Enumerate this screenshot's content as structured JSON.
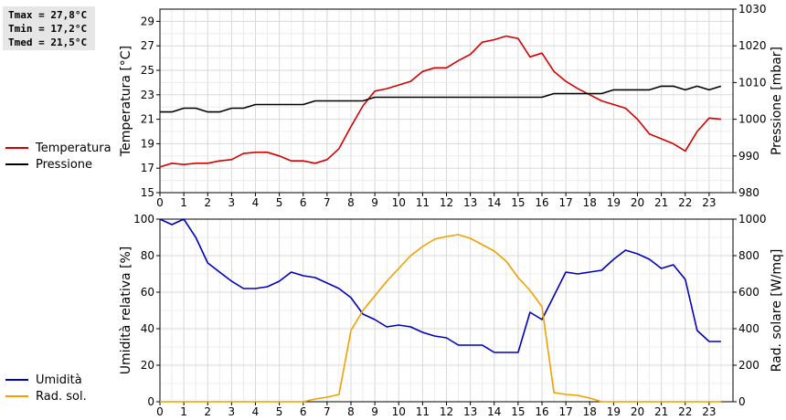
{
  "stats": {
    "tmax": "Tmax = 27,8°C",
    "tmin": "Tmin = 17,2°C",
    "tmed": "Tmed = 21,5°C"
  },
  "colors": {
    "temperature": "#d40000",
    "pressure": "#000000",
    "humidity": "#0000bb",
    "radiation": "#f0a000",
    "grid": "#d8d8d8",
    "axis": "#000000"
  },
  "chart_data": [
    {
      "type": "line",
      "xlabel": "",
      "x_ticks": [
        0,
        1,
        2,
        3,
        4,
        5,
        6,
        7,
        8,
        9,
        10,
        11,
        12,
        13,
        14,
        15,
        16,
        17,
        18,
        19,
        20,
        21,
        22,
        23
      ],
      "y_left": {
        "label": "Temperatura [°C]",
        "lim": [
          15,
          30
        ],
        "ticks": [
          15,
          17,
          19,
          21,
          23,
          25,
          27,
          29
        ]
      },
      "y_right": {
        "label": "Pressione [mbar]",
        "lim": [
          980,
          1030
        ],
        "ticks": [
          980,
          990,
          1000,
          1010,
          1020,
          1030
        ]
      },
      "legend": "left",
      "grid": true,
      "series": [
        {
          "name": "Temperatura",
          "axis": "left",
          "color_key": "temperature",
          "points": [
            [
              0,
              17.1
            ],
            [
              0.5,
              17.4
            ],
            [
              1,
              17.3
            ],
            [
              1.5,
              17.4
            ],
            [
              2,
              17.4
            ],
            [
              2.5,
              17.6
            ],
            [
              3,
              17.7
            ],
            [
              3.5,
              18.2
            ],
            [
              4,
              18.3
            ],
            [
              4.5,
              18.3
            ],
            [
              5,
              18.0
            ],
            [
              5.5,
              17.6
            ],
            [
              6,
              17.6
            ],
            [
              6.5,
              17.4
            ],
            [
              7,
              17.7
            ],
            [
              7.5,
              18.6
            ],
            [
              8,
              20.4
            ],
            [
              8.5,
              22.1
            ],
            [
              9,
              23.3
            ],
            [
              9.5,
              23.5
            ],
            [
              10,
              23.8
            ],
            [
              10.5,
              24.1
            ],
            [
              11,
              24.9
            ],
            [
              11.5,
              25.2
            ],
            [
              12,
              25.2
            ],
            [
              12.5,
              25.8
            ],
            [
              13,
              26.3
            ],
            [
              13.5,
              27.3
            ],
            [
              14,
              27.5
            ],
            [
              14.5,
              27.8
            ],
            [
              15,
              27.6
            ],
            [
              15.5,
              26.1
            ],
            [
              16,
              26.4
            ],
            [
              16.5,
              24.9
            ],
            [
              17,
              24.1
            ],
            [
              17.5,
              23.5
            ],
            [
              18,
              23.0
            ],
            [
              18.5,
              22.5
            ],
            [
              19,
              22.2
            ],
            [
              19.5,
              21.9
            ],
            [
              20,
              21.0
            ],
            [
              20.5,
              19.8
            ],
            [
              21,
              19.4
            ],
            [
              21.5,
              19.0
            ],
            [
              22,
              18.4
            ],
            [
              22.5,
              20.0
            ],
            [
              23,
              21.1
            ],
            [
              23.5,
              21.0
            ]
          ]
        },
        {
          "name": "Pressione",
          "axis": "right",
          "color_key": "pressure",
          "points": [
            [
              0,
              1002
            ],
            [
              0.5,
              1002
            ],
            [
              1,
              1003
            ],
            [
              1.5,
              1003
            ],
            [
              2,
              1002
            ],
            [
              2.5,
              1002
            ],
            [
              3,
              1003
            ],
            [
              3.5,
              1003
            ],
            [
              4,
              1004
            ],
            [
              4.5,
              1004
            ],
            [
              5,
              1004
            ],
            [
              5.5,
              1004
            ],
            [
              6,
              1004
            ],
            [
              6.5,
              1005
            ],
            [
              7,
              1005
            ],
            [
              7.5,
              1005
            ],
            [
              8,
              1005
            ],
            [
              8.5,
              1005
            ],
            [
              9,
              1006
            ],
            [
              9.5,
              1006
            ],
            [
              10,
              1006
            ],
            [
              10.5,
              1006
            ],
            [
              11,
              1006
            ],
            [
              11.5,
              1006
            ],
            [
              12,
              1006
            ],
            [
              12.5,
              1006
            ],
            [
              13,
              1006
            ],
            [
              13.5,
              1006
            ],
            [
              14,
              1006
            ],
            [
              14.5,
              1006
            ],
            [
              15,
              1006
            ],
            [
              15.5,
              1006
            ],
            [
              16,
              1006
            ],
            [
              16.5,
              1007
            ],
            [
              17,
              1007
            ],
            [
              17.5,
              1007
            ],
            [
              18,
              1007
            ],
            [
              18.5,
              1007
            ],
            [
              19,
              1008
            ],
            [
              19.5,
              1008
            ],
            [
              20,
              1008
            ],
            [
              20.5,
              1008
            ],
            [
              21,
              1009
            ],
            [
              21.5,
              1009
            ],
            [
              22,
              1008
            ],
            [
              22.5,
              1009
            ],
            [
              23,
              1008
            ],
            [
              23.5,
              1009
            ]
          ]
        }
      ]
    },
    {
      "type": "line",
      "xlabel": "",
      "x_ticks": [
        0,
        1,
        2,
        3,
        4,
        5,
        6,
        7,
        8,
        9,
        10,
        11,
        12,
        13,
        14,
        15,
        16,
        17,
        18,
        19,
        20,
        21,
        22,
        23
      ],
      "y_left": {
        "label": "Umidità relativa [%]",
        "lim": [
          0,
          100
        ],
        "ticks": [
          0,
          20,
          40,
          60,
          80,
          100
        ]
      },
      "y_right": {
        "label": "Rad. solare [W/mq]",
        "lim": [
          0,
          1000
        ],
        "ticks": [
          0,
          200,
          400,
          600,
          800,
          1000
        ]
      },
      "legend": "left",
      "grid": true,
      "series": [
        {
          "name": "Umidità",
          "axis": "left",
          "color_key": "humidity",
          "points": [
            [
              0,
              100
            ],
            [
              0.5,
              97
            ],
            [
              1,
              100
            ],
            [
              1.5,
              90
            ],
            [
              2,
              76
            ],
            [
              2.5,
              71
            ],
            [
              3,
              66
            ],
            [
              3.5,
              62
            ],
            [
              4,
              62
            ],
            [
              4.5,
              63
            ],
            [
              5,
              66
            ],
            [
              5.5,
              71
            ],
            [
              6,
              69
            ],
            [
              6.5,
              68
            ],
            [
              7,
              65
            ],
            [
              7.5,
              62
            ],
            [
              8,
              57
            ],
            [
              8.5,
              48
            ],
            [
              9,
              45
            ],
            [
              9.5,
              41
            ],
            [
              10,
              42
            ],
            [
              10.5,
              41
            ],
            [
              11,
              38
            ],
            [
              11.5,
              36
            ],
            [
              12,
              35
            ],
            [
              12.5,
              31
            ],
            [
              13,
              31
            ],
            [
              13.5,
              31
            ],
            [
              14,
              27
            ],
            [
              14.5,
              27
            ],
            [
              15,
              27
            ],
            [
              15.5,
              49
            ],
            [
              16,
              45
            ],
            [
              16.5,
              58
            ],
            [
              17,
              71
            ],
            [
              17.5,
              70
            ],
            [
              18,
              71
            ],
            [
              18.5,
              72
            ],
            [
              19,
              78
            ],
            [
              19.5,
              83
            ],
            [
              20,
              81
            ],
            [
              20.5,
              78
            ],
            [
              21,
              73
            ],
            [
              21.5,
              75
            ],
            [
              22,
              67
            ],
            [
              22.5,
              39
            ],
            [
              23,
              33
            ],
            [
              23.5,
              33
            ]
          ]
        },
        {
          "name": "Rad. sol.",
          "axis": "right",
          "color_key": "radiation",
          "points": [
            [
              0,
              0
            ],
            [
              6,
              0
            ],
            [
              6.5,
              15
            ],
            [
              7,
              25
            ],
            [
              7.5,
              40
            ],
            [
              8,
              390
            ],
            [
              8.5,
              500
            ],
            [
              9,
              580
            ],
            [
              9.5,
              660
            ],
            [
              10,
              730
            ],
            [
              10.5,
              800
            ],
            [
              11,
              850
            ],
            [
              11.5,
              890
            ],
            [
              12,
              905
            ],
            [
              12.5,
              915
            ],
            [
              13,
              895
            ],
            [
              13.5,
              860
            ],
            [
              14,
              825
            ],
            [
              14.5,
              770
            ],
            [
              15,
              680
            ],
            [
              15.5,
              610
            ],
            [
              16,
              520
            ],
            [
              16.5,
              50
            ],
            [
              17,
              40
            ],
            [
              17.5,
              35
            ],
            [
              18,
              20
            ],
            [
              18.5,
              0
            ],
            [
              23.5,
              0
            ]
          ]
        }
      ]
    }
  ]
}
